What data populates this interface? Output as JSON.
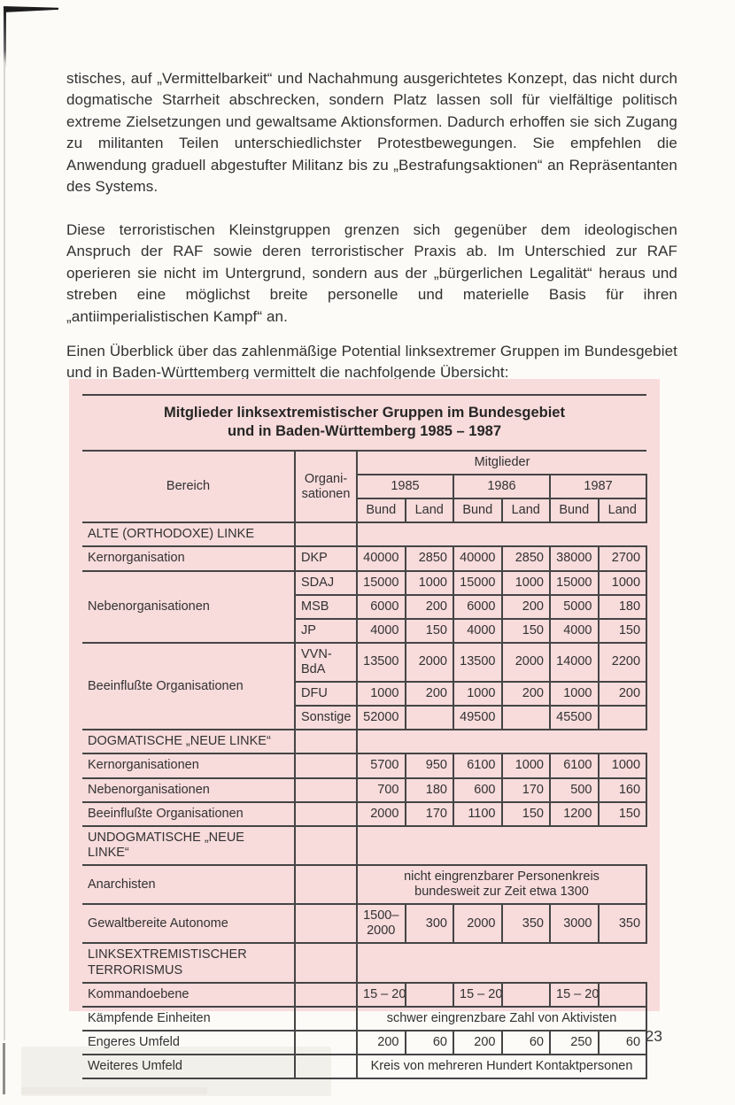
{
  "page": {
    "number": "23"
  },
  "paragraphs": {
    "p1": "stisches, auf „Vermittelbarkeit“ und Nachahmung ausgerichtetes Konzept, das nicht durch dogmatische Starrheit abschrecken, sondern Platz lassen soll für vielfältige politisch extreme Zielsetzungen und gewaltsame Aktionsformen. Dadurch erhoffen sie sich Zugang zu militanten Teilen unterschiedlichster Protestbewegungen. Sie empfehlen die Anwendung graduell abgestufter Militanz bis zu „Bestrafungsaktionen“ an Repräsentanten des Systems.",
    "p2": "Diese terroristischen Kleinstgruppen grenzen sich gegenüber dem ideologischen Anspruch der RAF sowie deren terroristischer Praxis ab. Im Unterschied zur RAF operieren sie nicht im Untergrund, sondern aus der „bürgerlichen Legalität“ heraus und streben eine möglichst breite personelle und materielle Basis für ihren „antiimperialistischen Kampf“ an.",
    "p3": "Einen Überblick über das zahlenmäßige Potential linksextremer Gruppen im Bundesgebiet und in Baden-Württemberg vermittelt die nachfolgende Übersicht:"
  },
  "colors": {
    "panel_pink": "#f8dbdb",
    "rule": "#454545"
  },
  "table": {
    "title_line1": "Mitglieder linksextremistischer Gruppen im Bundesgebiet",
    "title_line2": "und in Baden-Württemberg 1985 – 1987",
    "header": {
      "bereich": "Bereich",
      "org_line1": "Organi-",
      "org_line2": "sationen",
      "mitglieder": "Mitglieder",
      "years": [
        "1985",
        "1986",
        "1987"
      ],
      "bund": "Bund",
      "land": "Land"
    },
    "rows": [
      {
        "type": "section",
        "label": "ALTE (ORTHODOXE) LINKE"
      },
      {
        "type": "data",
        "label": "Kernorganisation",
        "org": "DKP",
        "c": [
          "40000",
          "2850",
          "40000",
          "2850",
          "38000",
          "2700"
        ]
      },
      {
        "type": "data",
        "label": "Nebenorganisationen",
        "org": "SDAJ",
        "c": [
          "15000",
          "1000",
          "15000",
          "1000",
          "15000",
          "1000"
        ]
      },
      {
        "type": "data",
        "org": "MSB",
        "c": [
          "6000",
          "200",
          "6000",
          "200",
          "5000",
          "180"
        ]
      },
      {
        "type": "data",
        "org": "JP",
        "c": [
          "4000",
          "150",
          "4000",
          "150",
          "4000",
          "150"
        ]
      },
      {
        "type": "data",
        "label": "Beeinflußte Organisationen",
        "org": "VVN-BdA",
        "c": [
          "13500",
          "2000",
          "13500",
          "2000",
          "14000",
          "2200"
        ]
      },
      {
        "type": "data",
        "org": "DFU",
        "c": [
          "1000",
          "200",
          "1000",
          "200",
          "1000",
          "200"
        ]
      },
      {
        "type": "data",
        "org": "Sonstige",
        "c": [
          "52000",
          "",
          "49500",
          "",
          "45500",
          ""
        ]
      },
      {
        "type": "section",
        "label": "DOGMATISCHE „NEUE LINKE“"
      },
      {
        "type": "data",
        "label": "Kernorganisationen",
        "org": "",
        "c": [
          "5700",
          "950",
          "6100",
          "1000",
          "6100",
          "1000"
        ]
      },
      {
        "type": "data",
        "label": "Nebenorganisationen",
        "org": "",
        "c": [
          "700",
          "180",
          "600",
          "170",
          "500",
          "160"
        ]
      },
      {
        "type": "data",
        "label": "Beeinflußte Organisationen",
        "org": "",
        "c": [
          "2000",
          "170",
          "1100",
          "150",
          "1200",
          "150"
        ]
      },
      {
        "type": "section",
        "label": "UNDOGMATISCHE „NEUE LINKE“"
      },
      {
        "type": "merged",
        "label": "Anarchisten",
        "span_line1": "nicht eingrenzbarer Personenkreis",
        "span_line2": "bundesweit zur Zeit etwa 1300"
      },
      {
        "type": "data",
        "label": "Gewaltbereite Autonome",
        "org": "",
        "c0a": "1500–",
        "c0b": "2000",
        "c": [
          "",
          "300",
          "2000",
          "350",
          "3000",
          "350"
        ]
      },
      {
        "type": "section",
        "label": "LINKSEXTREMISTISCHER TERRORISMUS"
      },
      {
        "type": "data",
        "label": "Kommandoebene",
        "org": "",
        "c": [
          "15 – 20",
          "",
          "15 – 20",
          "",
          "15 – 20",
          ""
        ]
      },
      {
        "type": "merged",
        "label": "Kämpfende Einheiten",
        "span_line1": "schwer eingrenzbare Zahl von Aktivisten"
      },
      {
        "type": "data",
        "label": "Engeres Umfeld",
        "org": "",
        "c": [
          "200",
          "60",
          "200",
          "60",
          "250",
          "60"
        ]
      },
      {
        "type": "merged",
        "label": "Weiteres Umfeld",
        "span_line1": "Kreis von mehreren Hundert Kontaktpersonen"
      }
    ]
  }
}
